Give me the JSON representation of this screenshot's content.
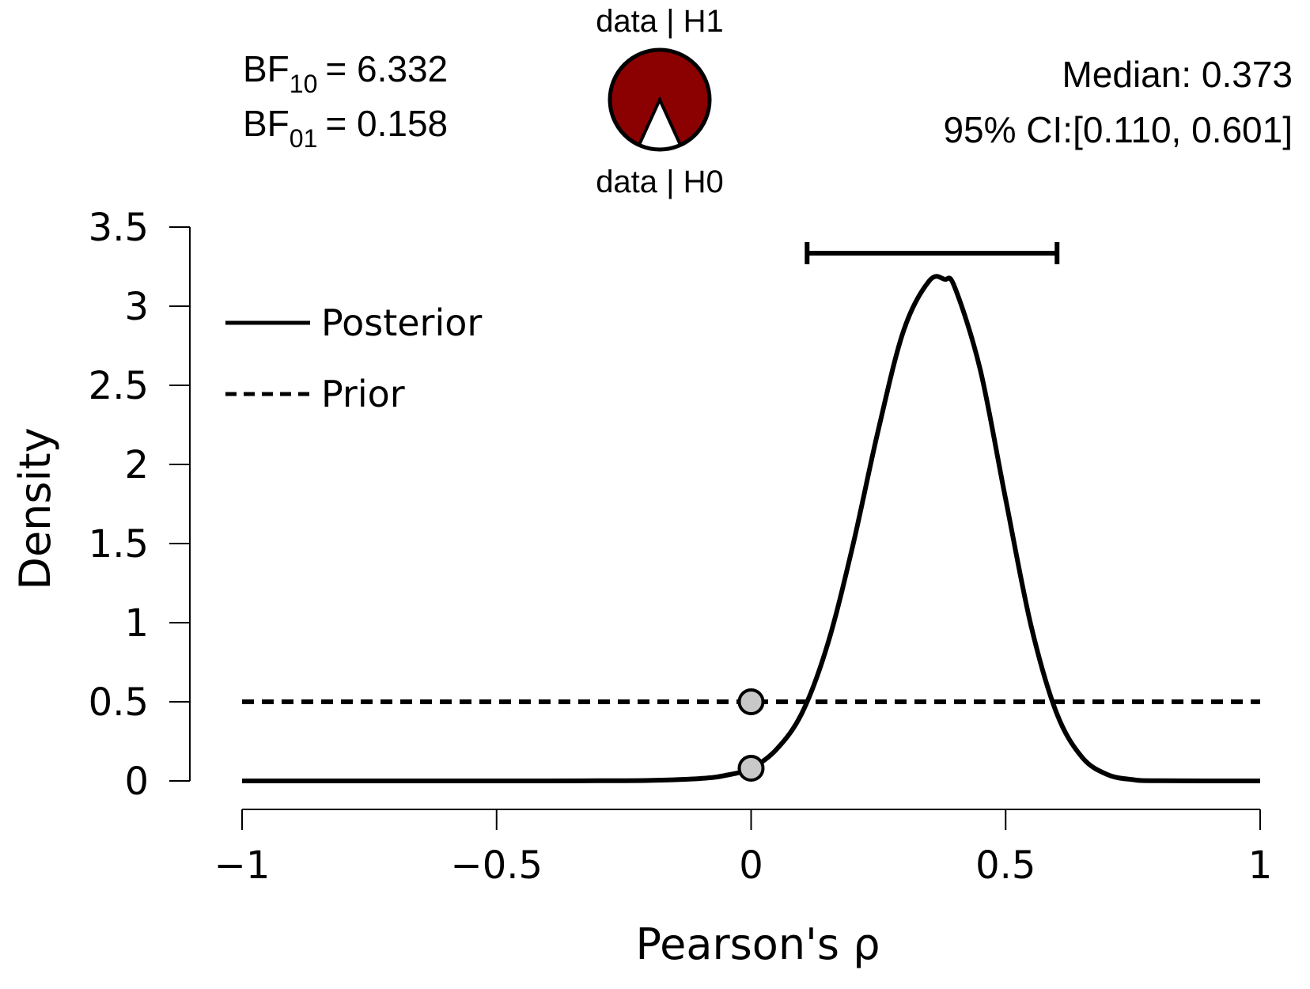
{
  "header": {
    "bf10": {
      "base": "BF",
      "sub": "10",
      "value": "= 6.332"
    },
    "bf01": {
      "base": "BF",
      "sub": "01",
      "value": "= 0.158"
    },
    "wheel_top_label": "data | H1",
    "wheel_bottom_label": "data | H0",
    "median_text": "Median: 0.373",
    "ci_text": "95% CI:[0.110, 0.601]"
  },
  "colors": {
    "h1_wedge": "#8B0000",
    "h0_wedge": "#ffffff",
    "line": "#000000",
    "point_fill": "#c8c8c8"
  },
  "chart_data": {
    "type": "line",
    "xlabel": "Pearson's ρ",
    "ylabel": "Density",
    "xlim": [
      -1,
      1
    ],
    "ylim": [
      0,
      3.5
    ],
    "x_ticks": [
      -1,
      -0.5,
      0,
      0.5,
      1
    ],
    "x_tick_labels": [
      "−1",
      "−0.5",
      "0",
      "0.5",
      "1"
    ],
    "y_ticks": [
      0,
      0.5,
      1,
      1.5,
      2,
      2.5,
      3,
      3.5
    ],
    "y_tick_labels": [
      "0",
      "0.5",
      "1",
      "1.5",
      "2",
      "2.5",
      "3",
      "3.5"
    ],
    "legend_position": "top-left",
    "series": [
      {
        "name": "Posterior",
        "style": "solid",
        "x": [
          -1,
          -0.8,
          -0.6,
          -0.4,
          -0.3,
          -0.2,
          -0.1,
          -0.05,
          0,
          0.05,
          0.1,
          0.15,
          0.2,
          0.25,
          0.3,
          0.35,
          0.38,
          0.4,
          0.45,
          0.5,
          0.55,
          0.6,
          0.65,
          0.7,
          0.75,
          0.8,
          1
        ],
        "y": [
          0,
          0,
          0,
          0,
          0.001,
          0.003,
          0.015,
          0.035,
          0.08,
          0.2,
          0.43,
          0.86,
          1.49,
          2.22,
          2.85,
          3.16,
          3.17,
          3.12,
          2.6,
          1.78,
          0.98,
          0.43,
          0.15,
          0.04,
          0.008,
          0.001,
          0
        ]
      },
      {
        "name": "Prior",
        "style": "dashed",
        "x": [
          -1,
          1
        ],
        "y": [
          0.5,
          0.5
        ]
      }
    ],
    "points": [
      {
        "x": 0,
        "y": 0.5
      },
      {
        "x": 0,
        "y": 0.08
      }
    ],
    "credible_interval": {
      "level": "95%",
      "lower": 0.11,
      "upper": 0.601,
      "median": 0.373
    },
    "probability_wheel": {
      "p_h1": 0.864,
      "p_h0": 0.136
    }
  }
}
